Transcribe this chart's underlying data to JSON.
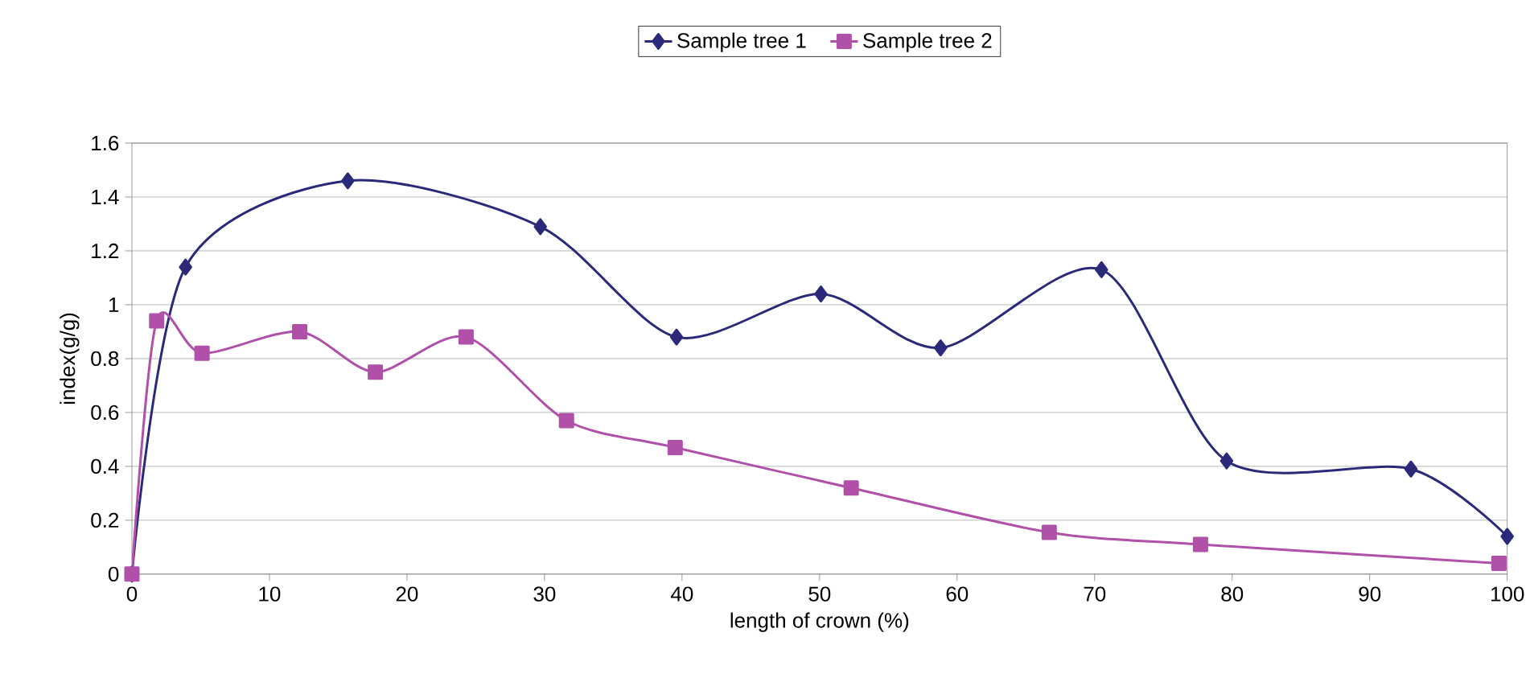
{
  "chart_data": {
    "type": "line",
    "xlabel": "length of crown  (%)",
    "ylabel": "index(g/g)",
    "xlim": [
      0,
      100
    ],
    "xticks": [
      0,
      10,
      20,
      30,
      40,
      50,
      60,
      70,
      80,
      90,
      100
    ],
    "ylim": [
      0,
      1.6
    ],
    "yticks": [
      0,
      0.2,
      0.4,
      0.6,
      0.8,
      1,
      1.2,
      1.4,
      1.6
    ],
    "grid": "y",
    "legend": "top",
    "series": [
      {
        "name": "Sample tree 1",
        "color": "#2b2a7a",
        "marker": "diamond",
        "x": [
          0,
          3.9,
          15.7,
          29.7,
          39.6,
          50.1,
          58.8,
          70.5,
          79.6,
          93,
          100
        ],
        "values": [
          0,
          1.14,
          1.46,
          1.29,
          0.88,
          1.04,
          0.84,
          1.13,
          0.42,
          0.39,
          0.14
        ]
      },
      {
        "name": "Sample tree 2",
        "color": "#b050a8",
        "marker": "square",
        "x": [
          0,
          1.8,
          5.1,
          12.2,
          17.7,
          24.3,
          31.6,
          39.5,
          52.3,
          66.7,
          77.7,
          99.4
        ],
        "values": [
          0,
          0.94,
          0.82,
          0.9,
          0.75,
          0.88,
          0.57,
          0.47,
          0.32,
          0.155,
          0.11,
          0.04
        ]
      }
    ]
  }
}
